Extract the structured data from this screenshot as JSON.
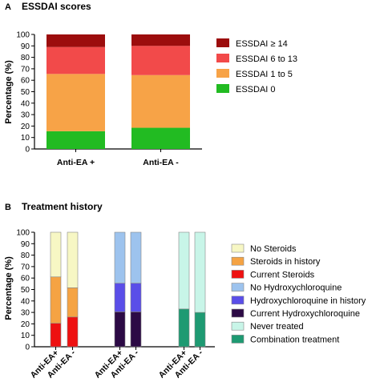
{
  "chart_data": [
    {
      "panel": "A",
      "type": "bar",
      "stacked": true,
      "title": "ESSDAI scores",
      "ylabel": "Percentage (%)",
      "ylim": [
        0,
        100
      ],
      "yticks": [
        0,
        10,
        20,
        30,
        40,
        50,
        60,
        70,
        80,
        90,
        100
      ],
      "categories": [
        "Anti-EA +",
        "Anti-EA -"
      ],
      "series": [
        {
          "name": "ESSDAI 0",
          "color": "#22bb22",
          "values": [
            15.5,
            18.5
          ]
        },
        {
          "name": "ESSDAI 1 to 5",
          "color": "#f7a347",
          "values": [
            50,
            46
          ]
        },
        {
          "name": "ESSDAI 6 to 13",
          "color": "#f24a4a",
          "values": [
            23.5,
            25.5
          ]
        },
        {
          "name": "ESSDAI ≥ 14",
          "color": "#9c0d0d",
          "values": [
            11,
            10
          ]
        }
      ],
      "legend_order": [
        "ESSDAI ≥ 14",
        "ESSDAI 6 to 13",
        "ESSDAI 1 to 5",
        "ESSDAI 0"
      ],
      "legend_position": "right"
    },
    {
      "panel": "B",
      "type": "bar",
      "stacked": true,
      "title": "Treatment history",
      "ylabel": "Percentage (%)",
      "ylim": [
        0,
        100
      ],
      "yticks": [
        0,
        10,
        20,
        30,
        40,
        50,
        60,
        70,
        80,
        90,
        100
      ],
      "groups": [
        {
          "bars": [
            {
              "label": "Anti-EA+",
              "segments": [
                {
                  "name": "Current Steroids",
                  "value": 20.5
                },
                {
                  "name": "Steroids in history",
                  "value": 40.5
                },
                {
                  "name": "No Steroids",
                  "value": 39
                }
              ]
            },
            {
              "label": "Anti-EA -",
              "segments": [
                {
                  "name": "Current Steroids",
                  "value": 26
                },
                {
                  "name": "Steroids in history",
                  "value": 25.5
                },
                {
                  "name": "No Steroids",
                  "value": 48.5
                }
              ]
            }
          ]
        },
        {
          "bars": [
            {
              "label": "Anti-EA+",
              "segments": [
                {
                  "name": "Current Hydroxychloroquine",
                  "value": 30.5
                },
                {
                  "name": "Hydroxychloroquine in history",
                  "value": 25
                },
                {
                  "name": "No Hydroxychloroquine",
                  "value": 44.5
                }
              ]
            },
            {
              "label": "Anti-EA -",
              "segments": [
                {
                  "name": "Current Hydroxychloroquine",
                  "value": 30.5
                },
                {
                  "name": "Hydroxychloroquine in history",
                  "value": 25
                },
                {
                  "name": "No Hydroxychloroquine",
                  "value": 44.5
                }
              ]
            }
          ]
        },
        {
          "bars": [
            {
              "label": "Anti-EA+",
              "segments": [
                {
                  "name": "Combination treatment",
                  "value": 33
                },
                {
                  "name": "Never treated",
                  "value": 67
                }
              ]
            },
            {
              "label": "Anti-EA -",
              "segments": [
                {
                  "name": "Combination treatment",
                  "value": 30
                },
                {
                  "name": "Never treated",
                  "value": 70
                }
              ]
            }
          ]
        }
      ],
      "legend": [
        {
          "name": "No Steroids",
          "color": "#f7f7c4"
        },
        {
          "name": "Steroids in history",
          "color": "#f5a343"
        },
        {
          "name": "Current Steroids",
          "color": "#ee1111"
        },
        {
          "name": "No Hydroxychloroquine",
          "color": "#9dc3ee"
        },
        {
          "name": "Hydroxychloroquine in history",
          "color": "#5a4ee8"
        },
        {
          "name": "Current Hydroxychloroquine",
          "color": "#2c0a45"
        },
        {
          "name": "Never treated",
          "color": "#c8f5e8"
        },
        {
          "name": "Combination treatment",
          "color": "#1e9a72"
        }
      ],
      "legend_position": "right"
    }
  ]
}
